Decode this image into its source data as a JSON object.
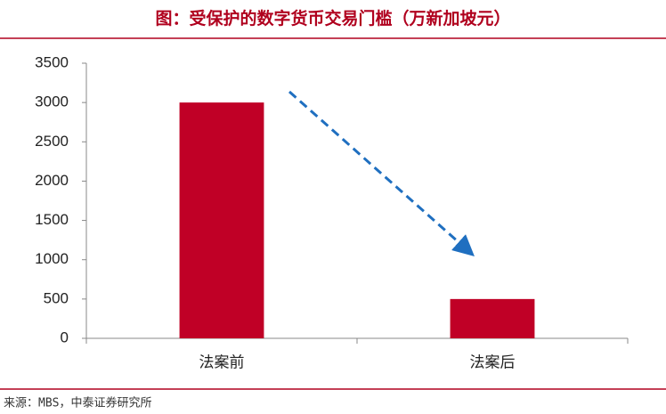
{
  "chart_data": {
    "type": "bar",
    "title": "图：受保护的数字货币交易门槛（万新加坡元）",
    "categories": [
      "法案前",
      "法案后"
    ],
    "values": [
      3000,
      500
    ],
    "color": "#c00026",
    "ylim": [
      0,
      3500
    ],
    "yticks": [
      0,
      500,
      1000,
      1500,
      2000,
      2500,
      3000,
      3500
    ],
    "grid": false,
    "source": "来源：MBS，中泰证券研究所"
  }
}
